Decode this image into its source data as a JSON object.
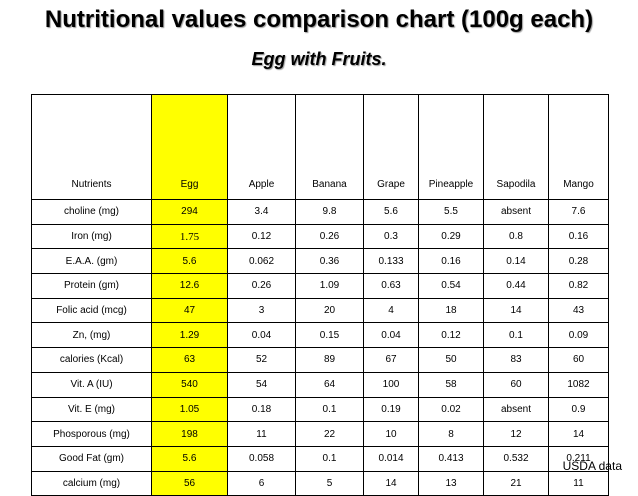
{
  "title": "Nutritional values comparison chart (100g each)",
  "subtitle": "Egg with Fruits.",
  "table": {
    "headers": [
      "Nutrients",
      "Egg",
      "Apple",
      "Banana",
      "Grape",
      "Pineapple",
      "Sapodila",
      "Mango"
    ],
    "rows": [
      [
        "choline (mg)",
        "294",
        "3.4",
        "9.8",
        "5.6",
        "5.5",
        "absent",
        "7.6"
      ],
      [
        "Iron (mg)",
        "1.75",
        "0.12",
        "0.26",
        "0.3",
        "0.29",
        "0.8",
        "0.16"
      ],
      [
        "E.A.A. (gm)",
        "5.6",
        "0.062",
        "0.36",
        "0.133",
        "0.16",
        "0.14",
        "0.28"
      ],
      [
        "Protein (gm)",
        "12.6",
        "0.26",
        "1.09",
        "0.63",
        "0.54",
        "0.44",
        "0.82"
      ],
      [
        "Folic acid (mcg)",
        "47",
        "3",
        "20",
        "4",
        "18",
        "14",
        "43"
      ],
      [
        "Zn, (mg)",
        "1.29",
        "0.04",
        "0.15",
        "0.04",
        "0.12",
        "0.1",
        "0.09"
      ],
      [
        "calories (Kcal)",
        "63",
        "52",
        "89",
        "67",
        "50",
        "83",
        "60"
      ],
      [
        "Vit. A (IU)",
        "540",
        "54",
        "64",
        "100",
        "58",
        "60",
        "1082"
      ],
      [
        "Vit. E (mg)",
        "1.05",
        "0.18",
        "0.1",
        "0.19",
        "0.02",
        "absent",
        "0.9"
      ],
      [
        "Phosporous (mg)",
        "198",
        "11",
        "22",
        "10",
        "8",
        "12",
        "14"
      ],
      [
        "Good Fat (gm)",
        "5.6",
        "0.058",
        "0.1",
        "0.014",
        "0.413",
        "0.532",
        "0.211"
      ],
      [
        "calcium (mg)",
        "56",
        "6",
        "5",
        "14",
        "13",
        "21",
        "11"
      ]
    ]
  },
  "source": "USDA data",
  "colors": {
    "egg_highlight": "#ffff00",
    "border": "#000000"
  }
}
